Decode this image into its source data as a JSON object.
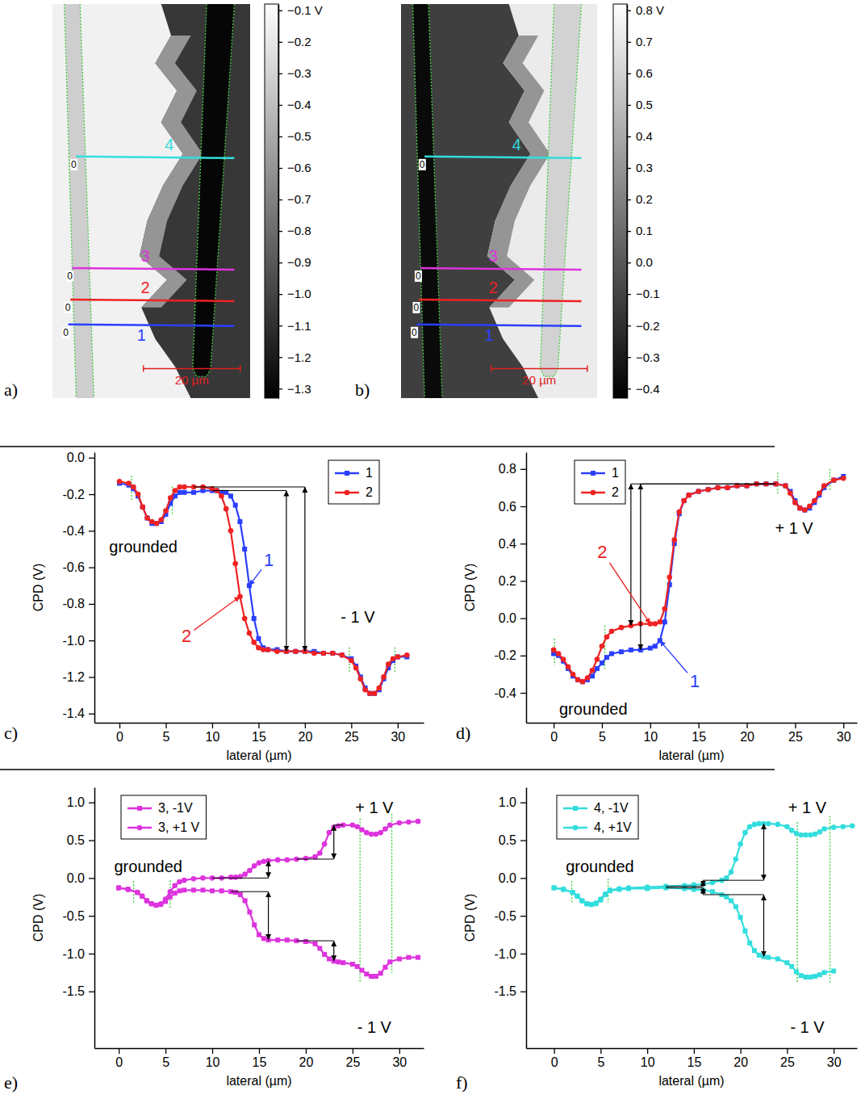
{
  "chart_data": [
    {
      "type": "image",
      "panel_label": "a)",
      "values": [
        -0.32,
        -0.15,
        -0.6,
        -1.06,
        -1.3
      ],
      "colorbar": {
        "range": [
          -1.33,
          -0.08
        ],
        "ticks": [
          {
            "value": -0.1,
            "label": "−0.1 V"
          },
          {
            "value": -0.2,
            "label": "−0.2"
          },
          {
            "value": -0.3,
            "label": "−0.3"
          },
          {
            "value": -0.4,
            "label": "−0.4"
          },
          {
            "value": -0.5,
            "label": "−0.5"
          },
          {
            "value": -0.6,
            "label": "−0.6"
          },
          {
            "value": -0.7,
            "label": "−0.7"
          },
          {
            "value": -0.8,
            "label": "−0.8"
          },
          {
            "value": -0.9,
            "label": "−0.9"
          },
          {
            "value": -1.0,
            "label": "−1.0"
          },
          {
            "value": -1.1,
            "label": "−1.1"
          },
          {
            "value": -1.2,
            "label": "−1.2"
          },
          {
            "value": -1.3,
            "label": "−1.3"
          }
        ]
      },
      "profiles": [
        {
          "name": "1",
          "color": "#2a3fff",
          "start_label": "0"
        },
        {
          "name": "2",
          "color": "#ee2222",
          "start_label": "0"
        },
        {
          "name": "3",
          "color": "#dd33dd",
          "start_label": "0"
        },
        {
          "name": "4",
          "color": "#33dddd",
          "start_label": "0"
        }
      ],
      "scale_bar": "20 µm"
    },
    {
      "type": "image",
      "panel_label": "b)",
      "values": [
        -0.38,
        -0.12,
        0.3,
        0.72,
        0.6
      ],
      "colorbar": {
        "range": [
          -0.43,
          0.82
        ],
        "ticks": [
          {
            "value": 0.8,
            "label": "0.8 V"
          },
          0.7,
          0.6,
          0.5,
          0.4,
          0.3,
          0.2,
          0.1,
          {
            "value": 0,
            "label": "0.0"
          },
          {
            "value": -0.1,
            "label": "−0.1"
          },
          {
            "value": -0.2,
            "label": "−0.2"
          },
          {
            "value": -0.3,
            "label": "−0.3"
          },
          {
            "value": -0.4,
            "label": "−0.4"
          }
        ]
      },
      "profiles": [
        {
          "name": "1",
          "color": "#2a3fff",
          "start_label": "0"
        },
        {
          "name": "2",
          "color": "#ee2222",
          "start_label": "0"
        },
        {
          "name": "3",
          "color": "#dd33dd",
          "start_label": "0"
        },
        {
          "name": "4",
          "color": "#33dddd",
          "start_label": "0"
        }
      ],
      "scale_bar": "20 µm"
    },
    {
      "type": "line",
      "panel_label": "c)",
      "x_label": "lateral (µm)",
      "y_label": "CPD (V)",
      "x": [
        0,
        1,
        1.5,
        2,
        2.5,
        3,
        3.5,
        4,
        4.5,
        5,
        5.5,
        6,
        6.5,
        7,
        8,
        9,
        10,
        10.5,
        11,
        11.5,
        12,
        12.5,
        13,
        13.5,
        14,
        14.5,
        15,
        15.5,
        16,
        17,
        18,
        19,
        20,
        21,
        22,
        23,
        24,
        25,
        25.5,
        26,
        26.5,
        27,
        27.5,
        28,
        28.5,
        29,
        29.5,
        30,
        31
      ],
      "xlim": [
        -2.7,
        32.8
      ],
      "xticks": [
        0,
        5,
        10,
        15,
        20,
        25,
        30
      ],
      "ylim": [
        -1.45,
        0.03
      ],
      "yticks": [
        {
          "value": 0,
          "label": "0.0"
        },
        -0.2,
        -0.4,
        -0.6,
        -0.8,
        {
          "value": -1,
          "label": "-1.0"
        },
        -1.2,
        -1.4
      ],
      "legend": "upper right",
      "series": [
        {
          "name": "1",
          "color": "#2a3fff",
          "marker": "square",
          "values": [
            -0.14,
            -0.15,
            -0.17,
            -0.21,
            -0.27,
            -0.33,
            -0.36,
            -0.36,
            -0.35,
            -0.31,
            -0.25,
            -0.21,
            -0.19,
            -0.19,
            -0.19,
            -0.18,
            -0.18,
            -0.18,
            -0.19,
            -0.19,
            -0.21,
            -0.26,
            -0.35,
            -0.5,
            -0.7,
            -0.88,
            -0.99,
            -1.04,
            -1.05,
            -1.05,
            -1.06,
            -1.06,
            -1.06,
            -1.06,
            -1.07,
            -1.07,
            -1.08,
            -1.1,
            -1.14,
            -1.2,
            -1.26,
            -1.29,
            -1.29,
            -1.27,
            -1.21,
            -1.15,
            -1.11,
            -1.09,
            -1.09
          ]
        },
        {
          "name": "2",
          "color": "#ee2222",
          "marker": "circle",
          "values": [
            -0.13,
            -0.14,
            -0.16,
            -0.2,
            -0.27,
            -0.33,
            -0.35,
            -0.36,
            -0.34,
            -0.29,
            -0.22,
            -0.18,
            -0.16,
            -0.16,
            -0.16,
            -0.16,
            -0.17,
            -0.18,
            -0.21,
            -0.28,
            -0.4,
            -0.58,
            -0.76,
            -0.88,
            -0.96,
            -1.01,
            -1.04,
            -1.05,
            -1.05,
            -1.06,
            -1.06,
            -1.06,
            -1.06,
            -1.07,
            -1.07,
            -1.07,
            -1.08,
            -1.11,
            -1.15,
            -1.21,
            -1.27,
            -1.29,
            -1.29,
            -1.26,
            -1.2,
            -1.13,
            -1.1,
            -1.09,
            -1.08
          ]
        }
      ],
      "annotations": [
        {
          "text": "grounded"
        },
        {
          "text": "- 1 V"
        },
        {
          "text": "1",
          "color": "#2a3fff"
        },
        {
          "text": "2",
          "color": "#ee2222"
        }
      ],
      "vlines": [
        1.3,
        5.7,
        24.8,
        29.7
      ]
    },
    {
      "type": "line",
      "panel_label": "d)",
      "x_label": "lateral (µm)",
      "y_label": "CPD (V)",
      "x": [
        0,
        0.5,
        1,
        1.5,
        2,
        2.5,
        3,
        3.5,
        4,
        4.5,
        5,
        5.5,
        6,
        7,
        8,
        9,
        10,
        10.5,
        11,
        11.5,
        12,
        12.5,
        13,
        13.5,
        14,
        15,
        16,
        17,
        18,
        19,
        20,
        21,
        22,
        23,
        24,
        24.5,
        25,
        25.5,
        26,
        26.5,
        27,
        27.5,
        28,
        29,
        30
      ],
      "xlim": [
        -2.85,
        31.4
      ],
      "xticks": [
        0,
        5,
        10,
        15,
        20,
        25,
        30
      ],
      "ylim": [
        -0.56,
        0.89
      ],
      "yticks": [
        -0.4,
        -0.2,
        {
          "value": 0,
          "label": "0.0"
        },
        0.2,
        0.4,
        0.6,
        0.8
      ],
      "legend": "upper left",
      "series": [
        {
          "name": "1",
          "color": "#2a3fff",
          "marker": "square",
          "values": [
            -0.19,
            -0.2,
            -0.23,
            -0.27,
            -0.31,
            -0.33,
            -0.34,
            -0.33,
            -0.31,
            -0.27,
            -0.24,
            -0.21,
            -0.19,
            -0.18,
            -0.17,
            -0.17,
            -0.16,
            -0.15,
            -0.12,
            -0.02,
            0.18,
            0.4,
            0.56,
            0.63,
            0.66,
            0.68,
            0.69,
            0.7,
            0.7,
            0.71,
            0.71,
            0.72,
            0.72,
            0.72,
            0.71,
            0.68,
            0.63,
            0.59,
            0.58,
            0.59,
            0.62,
            0.66,
            0.7,
            0.74,
            0.76
          ]
        },
        {
          "name": "2",
          "color": "#ee2222",
          "marker": "circle",
          "values": [
            -0.17,
            -0.19,
            -0.22,
            -0.26,
            -0.3,
            -0.33,
            -0.34,
            -0.32,
            -0.28,
            -0.22,
            -0.15,
            -0.1,
            -0.07,
            -0.05,
            -0.04,
            -0.03,
            -0.03,
            -0.03,
            -0.02,
            0.05,
            0.22,
            0.42,
            0.57,
            0.63,
            0.66,
            0.68,
            0.69,
            0.7,
            0.7,
            0.71,
            0.71,
            0.72,
            0.72,
            0.72,
            0.71,
            0.67,
            0.62,
            0.59,
            0.58,
            0.6,
            0.63,
            0.67,
            0.71,
            0.74,
            0.75
          ]
        }
      ],
      "annotations": [
        {
          "text": "grounded"
        },
        {
          "text": "+ 1 V"
        },
        {
          "text": "1",
          "color": "#2a3fff"
        },
        {
          "text": "2",
          "color": "#ee2222"
        }
      ],
      "vlines": [
        0.1,
        5.3,
        23.2,
        28.6
      ]
    },
    {
      "type": "line",
      "panel_label": "e)",
      "x_label": "lateral (µm)",
      "y_label": "CPD (V)",
      "x": [
        0,
        1,
        2,
        2.5,
        3,
        3.5,
        4,
        4.5,
        5,
        5.5,
        6,
        6.5,
        7,
        8,
        9,
        10,
        11,
        12,
        12.5,
        13,
        13.5,
        14,
        14.5,
        15,
        15.5,
        16,
        17,
        18,
        19,
        20,
        21,
        21.5,
        22,
        22.5,
        23,
        23.5,
        24,
        25,
        25.5,
        26,
        26.5,
        27,
        27.5,
        28,
        28.5,
        29,
        30,
        31,
        32
      ],
      "xlim": [
        -2.6,
        32.6
      ],
      "xticks": [
        0,
        5,
        10,
        15,
        20,
        25,
        30
      ],
      "ylim": [
        -2.25,
        1.2
      ],
      "yticks": [
        -1.5,
        {
          "value": -1,
          "label": "-1.0"
        },
        -0.5,
        {
          "value": 0,
          "label": "0.0"
        },
        0.5,
        {
          "value": 1,
          "label": "1.0"
        }
      ],
      "legend": "upper left",
      "series": [
        {
          "name": "3, -1V",
          "color": "#dd33dd",
          "marker": "square",
          "values": [
            -0.13,
            -0.15,
            -0.19,
            -0.24,
            -0.3,
            -0.34,
            -0.36,
            -0.35,
            -0.31,
            -0.25,
            -0.2,
            -0.17,
            -0.16,
            -0.16,
            -0.16,
            -0.17,
            -0.17,
            -0.18,
            -0.19,
            -0.22,
            -0.3,
            -0.45,
            -0.62,
            -0.75,
            -0.8,
            -0.82,
            -0.82,
            -0.82,
            -0.83,
            -0.84,
            -0.87,
            -0.93,
            -1.01,
            -1.07,
            -1.1,
            -1.11,
            -1.12,
            -1.14,
            -1.17,
            -1.22,
            -1.27,
            -1.3,
            -1.3,
            -1.26,
            -1.18,
            -1.11,
            -1.07,
            -1.05,
            -1.05
          ]
        },
        {
          "name": "3, +1 V",
          "color": "#dd33dd",
          "marker": "circle",
          "values": [
            -0.13,
            -0.15,
            -0.19,
            -0.24,
            -0.3,
            -0.34,
            -0.36,
            -0.34,
            -0.28,
            -0.18,
            -0.1,
            -0.05,
            -0.03,
            -0.01,
            0.0,
            0.0,
            0.0,
            0.01,
            0.01,
            0.02,
            0.05,
            0.1,
            0.16,
            0.2,
            0.22,
            0.23,
            0.24,
            0.24,
            0.25,
            0.26,
            0.28,
            0.33,
            0.45,
            0.6,
            0.67,
            0.69,
            0.7,
            0.7,
            0.68,
            0.64,
            0.6,
            0.58,
            0.58,
            0.6,
            0.65,
            0.7,
            0.73,
            0.74,
            0.75
          ]
        }
      ],
      "annotations": [
        {
          "text": "grounded"
        },
        {
          "text": "+ 1 V"
        },
        {
          "text": "- 1 V"
        }
      ],
      "vlines": [
        1.6,
        5.5,
        25.8,
        29.2
      ]
    },
    {
      "type": "line",
      "panel_label": "f)",
      "x_label": "lateral (µm)",
      "y_label": "CPD (V)",
      "x": [
        0,
        1,
        2,
        2.5,
        3,
        3.5,
        4,
        4.5,
        5,
        5.5,
        6,
        7,
        8,
        10,
        12,
        14,
        15,
        16,
        17,
        18,
        18.5,
        19,
        19.5,
        20,
        20.5,
        21,
        21.5,
        22,
        22.5,
        23,
        24,
        25,
        25.5,
        26,
        26.5,
        27,
        27.5,
        28,
        28.5,
        29,
        30,
        31,
        32
      ],
      "xlim": [
        -3,
        32.5
      ],
      "xticks": [
        0,
        5,
        10,
        15,
        20,
        25,
        30
      ],
      "ylim": [
        -2.25,
        1.2
      ],
      "yticks": [
        -1.5,
        {
          "value": -1,
          "label": "-1.0"
        },
        -0.5,
        {
          "value": 0,
          "label": "0.0"
        },
        0.5,
        {
          "value": 1,
          "label": "1.0"
        }
      ],
      "legend": "upper left",
      "series": [
        {
          "name": "4, -1V",
          "color": "#33dddd",
          "marker": "square",
          "values": [
            -0.13,
            -0.15,
            -0.19,
            -0.24,
            -0.3,
            -0.34,
            -0.35,
            -0.34,
            -0.29,
            -0.22,
            -0.17,
            -0.15,
            -0.14,
            -0.14,
            -0.13,
            -0.14,
            -0.15,
            -0.16,
            -0.18,
            -0.22,
            -0.25,
            -0.3,
            -0.38,
            -0.52,
            -0.7,
            -0.86,
            -0.96,
            -1.02,
            -1.04,
            -1.05,
            -1.07,
            -1.12,
            -1.17,
            -1.24,
            -1.29,
            -1.31,
            -1.31,
            -1.3,
            -1.28,
            -1.25,
            -1.23,
            null,
            null
          ]
        },
        {
          "name": "4, +1V",
          "color": "#33dddd",
          "marker": "circle",
          "values": [
            -0.13,
            -0.15,
            -0.19,
            -0.24,
            -0.3,
            -0.34,
            -0.35,
            -0.33,
            -0.28,
            -0.21,
            -0.16,
            -0.14,
            -0.13,
            -0.12,
            -0.11,
            -0.1,
            -0.09,
            -0.08,
            -0.06,
            -0.03,
            0.0,
            0.08,
            0.25,
            0.45,
            0.6,
            0.68,
            0.71,
            0.72,
            0.72,
            0.72,
            0.71,
            0.68,
            0.63,
            0.59,
            0.57,
            0.57,
            0.57,
            0.58,
            0.61,
            0.65,
            0.67,
            0.68,
            0.69
          ]
        }
      ],
      "annotations": [
        {
          "text": "grounded"
        },
        {
          "text": "+ 1 V"
        },
        {
          "text": "- 1 V"
        }
      ],
      "vlines": [
        1.9,
        5.8,
        26.1,
        29.6
      ]
    }
  ]
}
